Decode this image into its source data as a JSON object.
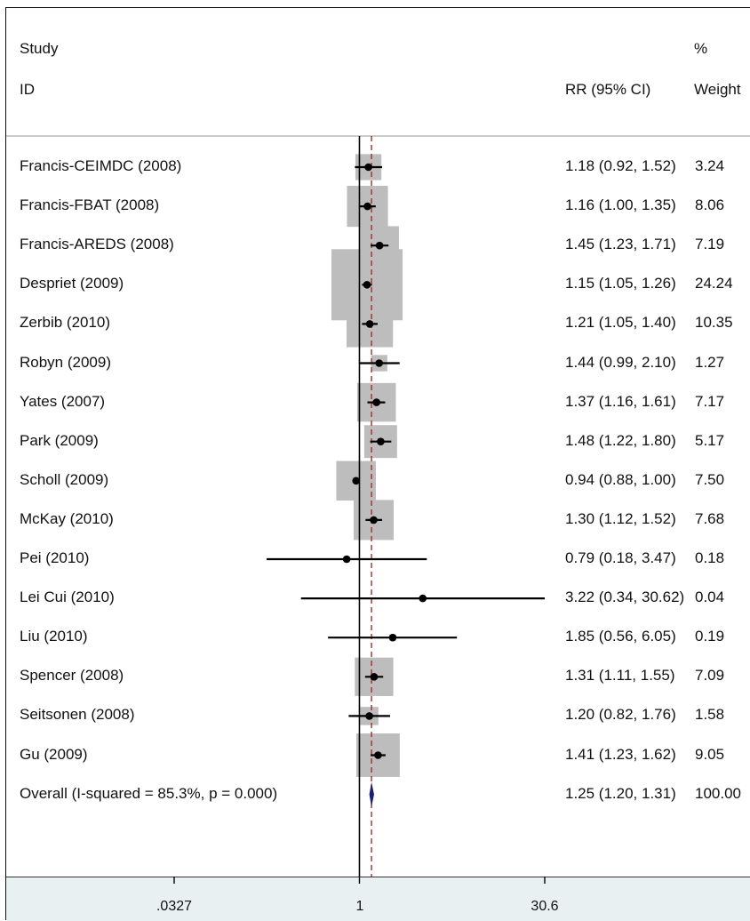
{
  "header": {
    "col1_line1": "Study",
    "col1_line2": "ID",
    "col2": "RR (95% CI)",
    "col3_line1": "%",
    "col3_line2": "Weight"
  },
  "chart_data": {
    "type": "forest",
    "effect_measure": "RR",
    "x_scale": "log",
    "xlim": [
      0.0327,
      30.6
    ],
    "x_ticks": [
      ".0327",
      "1",
      "30.6"
    ],
    "null_line": 1,
    "overall_line": 1.25,
    "marker_color": "#000000",
    "box_color": "#bdbdbd",
    "diamond_color": "#1a1f6e",
    "overall_line_color": "#a0302a",
    "studies": [
      {
        "id": "Francis-CEIMDC (2008)",
        "rr": 1.18,
        "lo": 0.92,
        "hi": 1.52,
        "ci_text": "1.18 (0.92, 1.52)",
        "weight": 3.24,
        "weight_text": "3.24"
      },
      {
        "id": "Francis-FBAT (2008)",
        "rr": 1.16,
        "lo": 1.0,
        "hi": 1.35,
        "ci_text": "1.16 (1.00, 1.35)",
        "weight": 8.06,
        "weight_text": "8.06"
      },
      {
        "id": "Francis-AREDS (2008)",
        "rr": 1.45,
        "lo": 1.23,
        "hi": 1.71,
        "ci_text": "1.45 (1.23, 1.71)",
        "weight": 7.19,
        "weight_text": "7.19"
      },
      {
        "id": "Despriet (2009)",
        "rr": 1.15,
        "lo": 1.05,
        "hi": 1.26,
        "ci_text": "1.15 (1.05, 1.26)",
        "weight": 24.24,
        "weight_text": "24.24"
      },
      {
        "id": "Zerbib (2010)",
        "rr": 1.21,
        "lo": 1.05,
        "hi": 1.4,
        "ci_text": "1.21 (1.05, 1.40)",
        "weight": 10.35,
        "weight_text": "10.35"
      },
      {
        "id": "Robyn (2009)",
        "rr": 1.44,
        "lo": 0.99,
        "hi": 2.1,
        "ci_text": "1.44 (0.99, 2.10)",
        "weight": 1.27,
        "weight_text": "1.27"
      },
      {
        "id": "Yates (2007)",
        "rr": 1.37,
        "lo": 1.16,
        "hi": 1.61,
        "ci_text": "1.37 (1.16, 1.61)",
        "weight": 7.17,
        "weight_text": "7.17"
      },
      {
        "id": "Park (2009)",
        "rr": 1.48,
        "lo": 1.22,
        "hi": 1.8,
        "ci_text": "1.48 (1.22, 1.80)",
        "weight": 5.17,
        "weight_text": "5.17"
      },
      {
        "id": "Scholl (2009)",
        "rr": 0.94,
        "lo": 0.88,
        "hi": 1.0,
        "ci_text": "0.94 (0.88, 1.00)",
        "weight": 7.5,
        "weight_text": "7.50"
      },
      {
        "id": "McKay (2010)",
        "rr": 1.3,
        "lo": 1.12,
        "hi": 1.52,
        "ci_text": "1.30 (1.12, 1.52)",
        "weight": 7.68,
        "weight_text": "7.68"
      },
      {
        "id": "Pei (2010)",
        "rr": 0.79,
        "lo": 0.18,
        "hi": 3.47,
        "ci_text": "0.79 (0.18, 3.47)",
        "weight": 0.18,
        "weight_text": "0.18"
      },
      {
        "id": "Lei Cui (2010)",
        "rr": 3.22,
        "lo": 0.34,
        "hi": 30.62,
        "ci_text": "3.22 (0.34, 30.62)",
        "weight": 0.04,
        "weight_text": "0.04"
      },
      {
        "id": "Liu (2010)",
        "rr": 1.85,
        "lo": 0.56,
        "hi": 6.05,
        "ci_text": "1.85 (0.56, 6.05)",
        "weight": 0.19,
        "weight_text": "0.19"
      },
      {
        "id": "Spencer (2008)",
        "rr": 1.31,
        "lo": 1.11,
        "hi": 1.55,
        "ci_text": "1.31 (1.11, 1.55)",
        "weight": 7.09,
        "weight_text": "7.09"
      },
      {
        "id": "Seitsonen (2008)",
        "rr": 1.2,
        "lo": 0.82,
        "hi": 1.76,
        "ci_text": "1.20 (0.82, 1.76)",
        "weight": 1.58,
        "weight_text": "1.58"
      },
      {
        "id": "Gu (2009)",
        "rr": 1.41,
        "lo": 1.23,
        "hi": 1.62,
        "ci_text": "1.41 (1.23, 1.62)",
        "weight": 9.05,
        "weight_text": "9.05"
      }
    ],
    "overall": {
      "id": "Overall  (I-squared = 85.3%, p = 0.000)",
      "rr": 1.25,
      "lo": 1.2,
      "hi": 1.31,
      "ci_text": "1.25 (1.20, 1.31)",
      "weight": 100.0,
      "weight_text": "100.00"
    }
  }
}
